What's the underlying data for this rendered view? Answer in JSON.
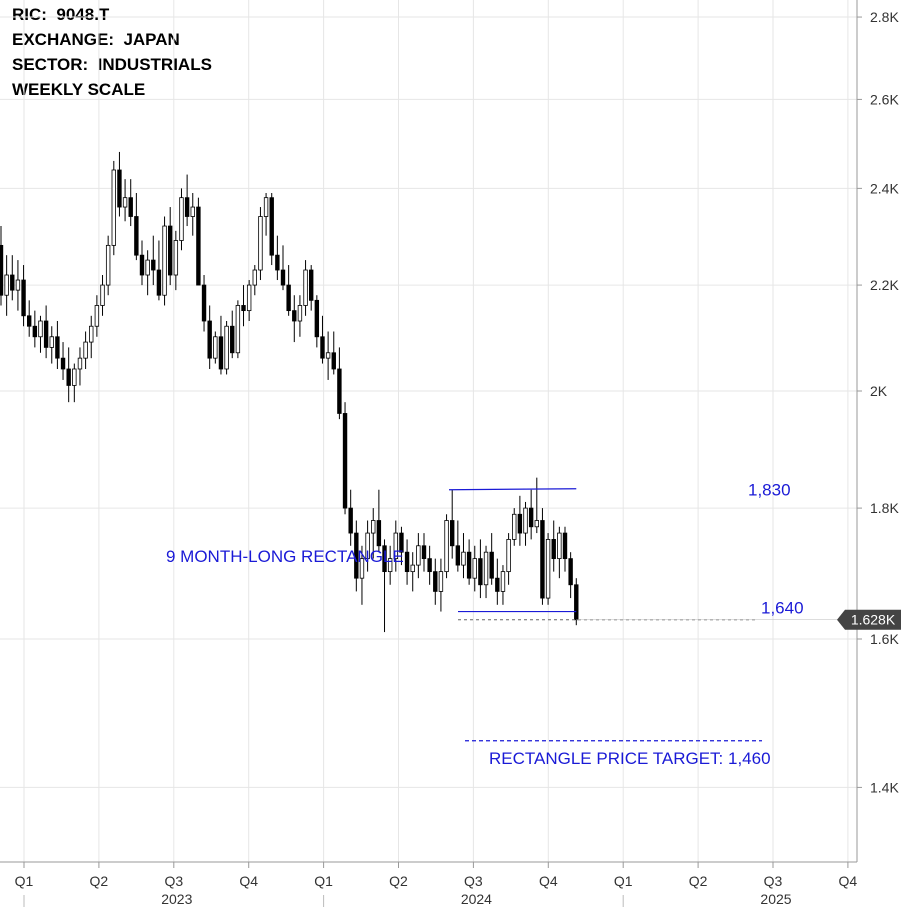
{
  "info": {
    "ric": "RIC:  9048.T",
    "exchange": "EXCHANGE:  JAPAN",
    "sector": "SECTOR:  INDUSTRIALS",
    "scale": "WEEKLY SCALE"
  },
  "chart_data": {
    "type": "candlestick",
    "scale": "log",
    "y_ticks": [
      {
        "value": 1400,
        "label": "1.4K"
      },
      {
        "value": 1600,
        "label": "1.6K"
      },
      {
        "value": 1800,
        "label": "1.8K"
      },
      {
        "value": 2000,
        "label": "2K"
      },
      {
        "value": 2200,
        "label": "2.2K"
      },
      {
        "value": 2400,
        "label": "2.4K"
      },
      {
        "value": 2600,
        "label": "2.6K"
      },
      {
        "value": 2800,
        "label": "2.8K"
      }
    ],
    "x_quarters": [
      "Q1",
      "Q2",
      "Q3",
      "Q4",
      "Q1",
      "Q2",
      "Q3",
      "Q4",
      "Q1",
      "Q2",
      "Q3",
      "Q4"
    ],
    "x_years": [
      "2023",
      "2024",
      "2025"
    ],
    "last_price": {
      "value": 1628,
      "label": "1.628K"
    },
    "colors": {
      "up": "#ffffff",
      "down": "#000000",
      "annotation": "#1a1ad6",
      "grid": "#e6e6e6"
    },
    "annotations": {
      "resistance": {
        "value": 1830,
        "label": "1,830"
      },
      "support": {
        "value": 1640,
        "label": "1,640"
      },
      "pattern": "9 MONTH-LONG RECTANGLE",
      "target": {
        "value": 1460,
        "label": "RECTANGLE PRICE TARGET: 1,460"
      }
    },
    "candles": [
      [
        2280,
        2320,
        2160,
        2180
      ],
      [
        2180,
        2260,
        2140,
        2220
      ],
      [
        2220,
        2260,
        2170,
        2190
      ],
      [
        2190,
        2250,
        2150,
        2210
      ],
      [
        2210,
        2240,
        2120,
        2140
      ],
      [
        2140,
        2170,
        2100,
        2120
      ],
      [
        2120,
        2150,
        2080,
        2100
      ],
      [
        2100,
        2140,
        2070,
        2130
      ],
      [
        2130,
        2160,
        2060,
        2080
      ],
      [
        2080,
        2120,
        2050,
        2100
      ],
      [
        2100,
        2130,
        2040,
        2060
      ],
      [
        2060,
        2090,
        2020,
        2040
      ],
      [
        2040,
        2080,
        1980,
        2010
      ],
      [
        2010,
        2050,
        1980,
        2040
      ],
      [
        2040,
        2080,
        2010,
        2060
      ],
      [
        2060,
        2110,
        2040,
        2090
      ],
      [
        2090,
        2140,
        2060,
        2120
      ],
      [
        2120,
        2180,
        2100,
        2160
      ],
      [
        2160,
        2220,
        2140,
        2200
      ],
      [
        2200,
        2300,
        2180,
        2280
      ],
      [
        2280,
        2460,
        2260,
        2440
      ],
      [
        2440,
        2480,
        2340,
        2360
      ],
      [
        2360,
        2420,
        2330,
        2380
      ],
      [
        2380,
        2420,
        2320,
        2340
      ],
      [
        2340,
        2390,
        2250,
        2260
      ],
      [
        2260,
        2290,
        2200,
        2220
      ],
      [
        2220,
        2270,
        2180,
        2250
      ],
      [
        2250,
        2300,
        2200,
        2230
      ],
      [
        2230,
        2290,
        2170,
        2180
      ],
      [
        2180,
        2340,
        2160,
        2320
      ],
      [
        2320,
        2360,
        2200,
        2220
      ],
      [
        2220,
        2310,
        2190,
        2290
      ],
      [
        2290,
        2400,
        2270,
        2380
      ],
      [
        2380,
        2430,
        2320,
        2340
      ],
      [
        2340,
        2390,
        2300,
        2360
      ],
      [
        2360,
        2380,
        2200,
        2200
      ],
      [
        2200,
        2220,
        2110,
        2130
      ],
      [
        2130,
        2160,
        2040,
        2060
      ],
      [
        2060,
        2110,
        2050,
        2100
      ],
      [
        2100,
        2140,
        2030,
        2040
      ],
      [
        2040,
        2130,
        2030,
        2120
      ],
      [
        2120,
        2150,
        2060,
        2070
      ],
      [
        2070,
        2170,
        2060,
        2160
      ],
      [
        2160,
        2200,
        2120,
        2150
      ],
      [
        2150,
        2210,
        2130,
        2200
      ],
      [
        2200,
        2240,
        2180,
        2230
      ],
      [
        2230,
        2360,
        2210,
        2340
      ],
      [
        2340,
        2390,
        2300,
        2380
      ],
      [
        2380,
        2390,
        2240,
        2260
      ],
      [
        2260,
        2300,
        2210,
        2230
      ],
      [
        2230,
        2280,
        2190,
        2200
      ],
      [
        2200,
        2240,
        2140,
        2150
      ],
      [
        2150,
        2180,
        2090,
        2130
      ],
      [
        2130,
        2180,
        2100,
        2160
      ],
      [
        2160,
        2250,
        2140,
        2230
      ],
      [
        2230,
        2240,
        2150,
        2170
      ],
      [
        2170,
        2180,
        2080,
        2100
      ],
      [
        2100,
        2140,
        2050,
        2060
      ],
      [
        2060,
        2110,
        2020,
        2070
      ],
      [
        2070,
        2110,
        2030,
        2040
      ],
      [
        2040,
        2080,
        1950,
        1960
      ],
      [
        1960,
        1980,
        1790,
        1800
      ],
      [
        1800,
        1830,
        1740,
        1760
      ],
      [
        1760,
        1780,
        1670,
        1690
      ],
      [
        1690,
        1740,
        1650,
        1720
      ],
      [
        1720,
        1780,
        1700,
        1760
      ],
      [
        1760,
        1800,
        1720,
        1780
      ],
      [
        1780,
        1830,
        1730,
        1740
      ],
      [
        1740,
        1750,
        1610,
        1700
      ],
      [
        1700,
        1740,
        1680,
        1720
      ],
      [
        1720,
        1780,
        1700,
        1760
      ],
      [
        1760,
        1770,
        1710,
        1730
      ],
      [
        1730,
        1750,
        1680,
        1700
      ],
      [
        1700,
        1730,
        1670,
        1710
      ],
      [
        1710,
        1760,
        1690,
        1740
      ],
      [
        1740,
        1760,
        1700,
        1720
      ],
      [
        1720,
        1740,
        1680,
        1700
      ],
      [
        1700,
        1720,
        1650,
        1670
      ],
      [
        1670,
        1720,
        1640,
        1700
      ],
      [
        1700,
        1790,
        1690,
        1780
      ],
      [
        1780,
        1830,
        1720,
        1740
      ],
      [
        1740,
        1780,
        1700,
        1710
      ],
      [
        1710,
        1760,
        1690,
        1730
      ],
      [
        1730,
        1750,
        1680,
        1690
      ],
      [
        1690,
        1740,
        1670,
        1720
      ],
      [
        1720,
        1750,
        1660,
        1680
      ],
      [
        1680,
        1740,
        1660,
        1730
      ],
      [
        1730,
        1760,
        1680,
        1690
      ],
      [
        1690,
        1720,
        1650,
        1670
      ],
      [
        1670,
        1710,
        1650,
        1700
      ],
      [
        1700,
        1760,
        1680,
        1750
      ],
      [
        1750,
        1800,
        1740,
        1790
      ],
      [
        1790,
        1820,
        1740,
        1760
      ],
      [
        1760,
        1810,
        1740,
        1800
      ],
      [
        1800,
        1830,
        1750,
        1770
      ],
      [
        1770,
        1850,
        1760,
        1780
      ],
      [
        1780,
        1800,
        1650,
        1660
      ],
      [
        1660,
        1760,
        1650,
        1750
      ],
      [
        1750,
        1780,
        1700,
        1720
      ],
      [
        1720,
        1770,
        1690,
        1760
      ],
      [
        1760,
        1770,
        1700,
        1720
      ],
      [
        1720,
        1730,
        1660,
        1680
      ],
      [
        1680,
        1690,
        1620,
        1628
      ]
    ]
  }
}
